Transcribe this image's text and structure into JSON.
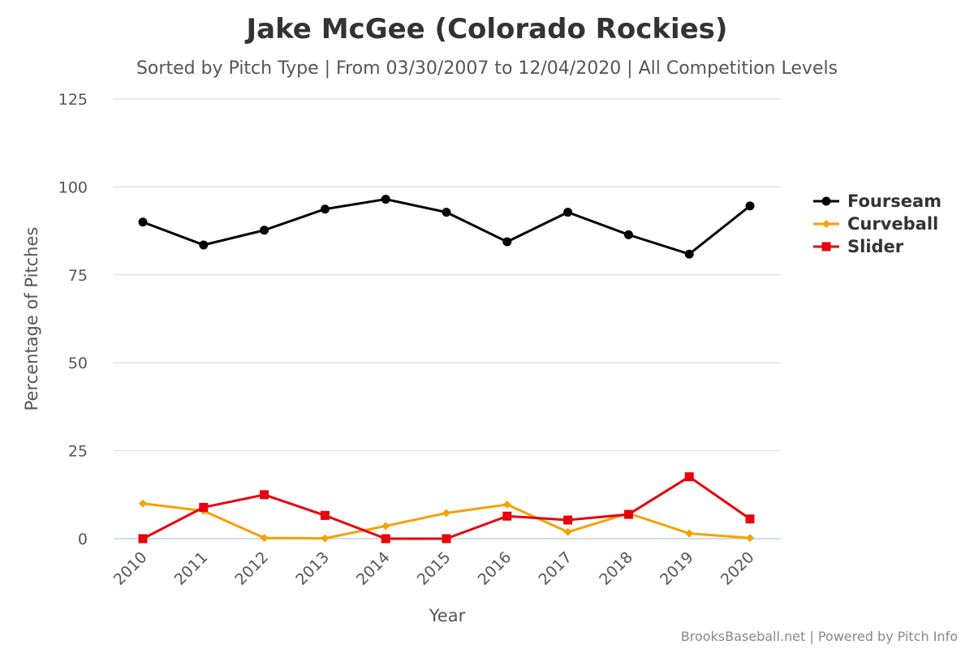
{
  "chart_data": {
    "type": "line",
    "title": "Jake McGee (Colorado Rockies)",
    "subtitle": "Sorted by Pitch Type | From 03/30/2007 to 12/04/2020 | All Competition Levels",
    "xlabel": "Year",
    "ylabel": "Percentage of Pitches",
    "categories": [
      "2010",
      "2011",
      "2012",
      "2013",
      "2014",
      "2015",
      "2016",
      "2017",
      "2018",
      "2019",
      "2020"
    ],
    "ylim": [
      0,
      125
    ],
    "yticks": [
      0,
      25,
      50,
      75,
      100,
      125
    ],
    "grid": true,
    "legend_position": "right",
    "series": [
      {
        "name": "Fourseam",
        "color": "#000000",
        "marker": "circle",
        "values": [
          90,
          83.5,
          87.7,
          93.7,
          96.5,
          92.8,
          84.4,
          92.8,
          86.4,
          80.9,
          94.6
        ]
      },
      {
        "name": "Curveball",
        "color": "#f5a100",
        "marker": "diamond",
        "values": [
          10,
          7.9,
          0.2,
          0.1,
          3.6,
          7.3,
          9.7,
          1.9,
          7.2,
          1.5,
          0.2
        ]
      },
      {
        "name": "Slider",
        "color": "#e8000c",
        "marker": "square",
        "values": [
          0,
          8.9,
          12.5,
          6.6,
          0,
          0,
          6.4,
          5.3,
          6.9,
          17.6,
          5.6
        ]
      }
    ],
    "credits": "BrooksBaseball.net | Powered by Pitch Info"
  }
}
